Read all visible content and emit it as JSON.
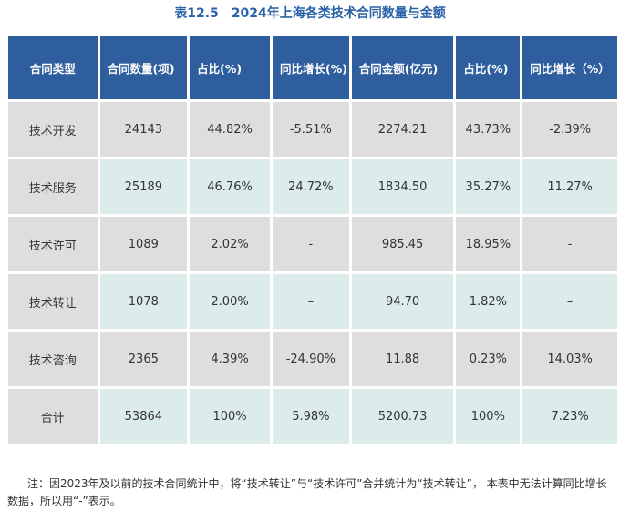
{
  "header": {
    "title": "表12.5　2024年上海各类技术合同数量与金额"
  },
  "table": {
    "columns": [
      "合同类型",
      "合同数量(项)",
      "占比(%)",
      "同比增长(%)",
      "合同金额(亿元)",
      "占比(%)",
      "同比增长（%）"
    ],
    "rows": [
      [
        "技术开发",
        "24143",
        "44.82%",
        "-5.51%",
        "2274.21",
        "43.73%",
        "-2.39%"
      ],
      [
        "技术服务",
        "25189",
        "46.76%",
        "24.72%",
        "1834.50",
        "35.27%",
        "11.27%"
      ],
      [
        "技术许可",
        "1089",
        "2.02%",
        "-",
        "985.45",
        "18.95%",
        "-"
      ],
      [
        "技术转让",
        "1078",
        "2.00%",
        "–",
        "94.70",
        "1.82%",
        "–"
      ],
      [
        "技术咨询",
        "2365",
        "4.39%",
        "-24.90%",
        "11.88",
        "0.23%",
        "14.03%"
      ],
      [
        "合计",
        "53864",
        "100%",
        "5.98%",
        "5200.73",
        "100%",
        "7.23%"
      ]
    ]
  },
  "footer": {
    "note": "注：因2023年及以前的技术合同统计中，将“技术转让”与“技术许可”合并统计为“技术转让”， 本表中无法计算同比增长数据，所以用“-”表示。"
  }
}
